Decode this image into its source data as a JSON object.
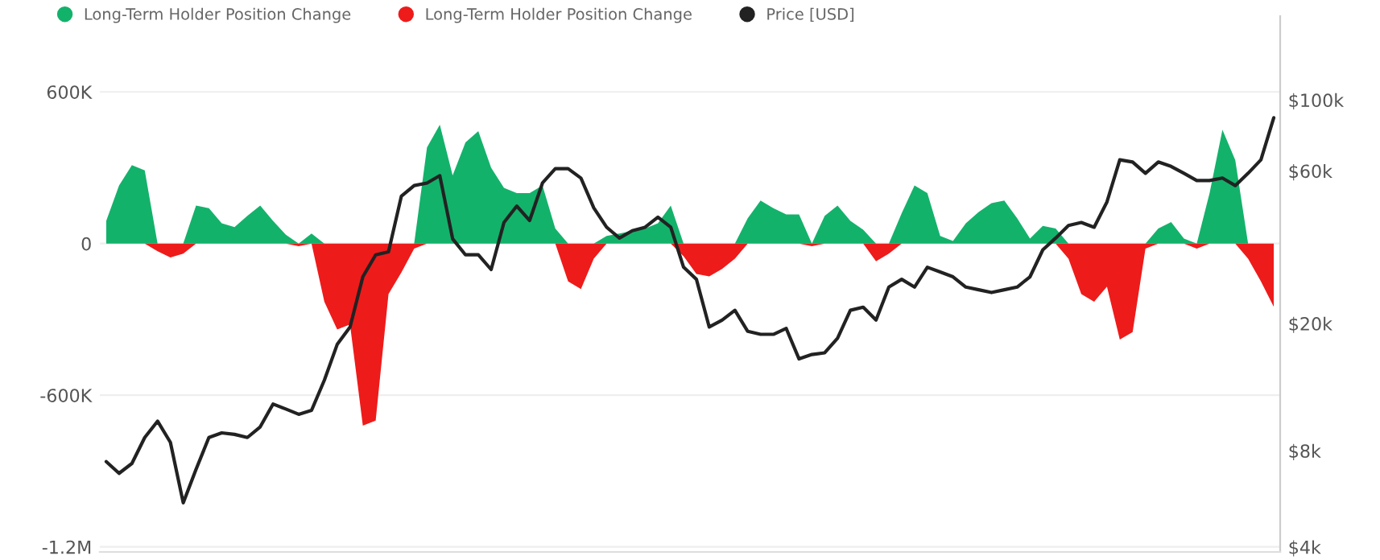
{
  "chart_data": {
    "type": "area",
    "categories": [
      null,
      null,
      null,
      null,
      null,
      null,
      null,
      null,
      null,
      null,
      null,
      null,
      null,
      null,
      null,
      null,
      null,
      null,
      null,
      null,
      null,
      null,
      null,
      null,
      null,
      null,
      null,
      null,
      null,
      null,
      null,
      null,
      null,
      null,
      null,
      null,
      null,
      null,
      null,
      null,
      null,
      null,
      null,
      null,
      null,
      null,
      null,
      null,
      null,
      null,
      null,
      null,
      null,
      null,
      null,
      null,
      null,
      null,
      null,
      null,
      null,
      null,
      null,
      null,
      null,
      null,
      null,
      null,
      null,
      null,
      null,
      null,
      null,
      null,
      null,
      null,
      null,
      null,
      null,
      null,
      null,
      null,
      null,
      null,
      null,
      null,
      null,
      null,
      null,
      null,
      null,
      null
    ],
    "series": [
      {
        "name": "Long-Term Holder Position Change",
        "color": "#13b26b",
        "values": [
          90000,
          230000,
          310000,
          290000,
          0,
          0,
          0,
          150000,
          140000,
          80000,
          65000,
          110000,
          150000,
          90000,
          35000,
          0,
          40000,
          0,
          0,
          0,
          0,
          0,
          0,
          0,
          0,
          380000,
          470000,
          270000,
          400000,
          445000,
          300000,
          220000,
          200000,
          200000,
          230000,
          60000,
          0,
          0,
          0,
          30000,
          40000,
          50000,
          60000,
          80000,
          150000,
          0,
          0,
          0,
          0,
          0,
          100000,
          170000,
          140000,
          115000,
          115000,
          0,
          110000,
          150000,
          90000,
          55000,
          0,
          0,
          120000,
          230000,
          200000,
          30000,
          10000,
          80000,
          125000,
          160000,
          170000,
          100000,
          20000,
          70000,
          60000,
          0,
          0,
          0,
          0,
          0,
          0,
          0,
          60000,
          85000,
          20000,
          0,
          200000,
          450000,
          330000,
          0,
          0,
          0
        ]
      },
      {
        "name": "Long-Term Holder Position Change",
        "color": "#ee1b1b",
        "values": [
          0,
          0,
          0,
          0,
          -30000,
          -55000,
          -40000,
          0,
          0,
          0,
          0,
          0,
          0,
          0,
          0,
          -10000,
          0,
          -230000,
          -340000,
          -320000,
          -720000,
          -700000,
          -200000,
          -115000,
          -20000,
          0,
          0,
          0,
          0,
          0,
          0,
          0,
          0,
          0,
          0,
          0,
          -150000,
          -180000,
          -60000,
          0,
          0,
          0,
          0,
          0,
          0,
          -50000,
          -120000,
          -130000,
          -100000,
          -60000,
          0,
          0,
          0,
          0,
          0,
          -10000,
          0,
          0,
          0,
          0,
          -70000,
          -40000,
          0,
          0,
          0,
          0,
          0,
          0,
          0,
          0,
          0,
          0,
          0,
          0,
          0,
          -60000,
          -200000,
          -230000,
          -170000,
          -380000,
          -350000,
          -20000,
          0,
          0,
          0,
          -20000,
          0,
          0,
          0,
          -60000,
          -150000,
          -250000
        ]
      },
      {
        "name": "Price [USD]",
        "type": "line",
        "axis": "y2",
        "color": "#222222",
        "values": [
          7400,
          6800,
          7300,
          8800,
          9900,
          8500,
          5500,
          7000,
          8800,
          9100,
          9000,
          8800,
          9500,
          11200,
          10800,
          10400,
          10700,
          13300,
          17200,
          19500,
          28000,
          32800,
          33500,
          50000,
          54000,
          55000,
          58000,
          36800,
          32800,
          32800,
          29500,
          41400,
          46600,
          42000,
          55000,
          61000,
          61000,
          57000,
          46000,
          40000,
          37000,
          39000,
          40000,
          43000,
          40000,
          30000,
          27500,
          19500,
          20500,
          22000,
          18900,
          18500,
          18500,
          19300,
          15500,
          16000,
          16200,
          18000,
          22000,
          22500,
          20500,
          26000,
          27500,
          26000,
          30000,
          29000,
          28000,
          26000,
          25500,
          25000,
          25500,
          26000,
          28000,
          34000,
          37000,
          40500,
          41400,
          40000,
          48000,
          65000,
          64000,
          59000,
          64000,
          62000,
          59000,
          56000,
          56000,
          57000,
          54000,
          59000,
          65000,
          88000
        ]
      }
    ],
    "ylim": [
      -1220000,
      900000
    ],
    "yticks": [
      {
        "value": -1200000,
        "label": "-1.2M"
      },
      {
        "value": -600000,
        "label": "-600K"
      },
      0,
      {
        "value": 600000,
        "label": "600K"
      }
    ],
    "y2lim": [
      3860,
      183000
    ],
    "y2ticks": [
      {
        "value": 4000,
        "label": "$4k"
      },
      {
        "value": 8000,
        "label": "$8k"
      },
      {
        "value": 20000,
        "label": "$20k"
      },
      {
        "value": 60000,
        "label": "$60k"
      },
      {
        "value": 100000,
        "label": "$100k"
      }
    ],
    "log": "y2",
    "grid": "y",
    "legend": "top left",
    "marker": "none"
  }
}
